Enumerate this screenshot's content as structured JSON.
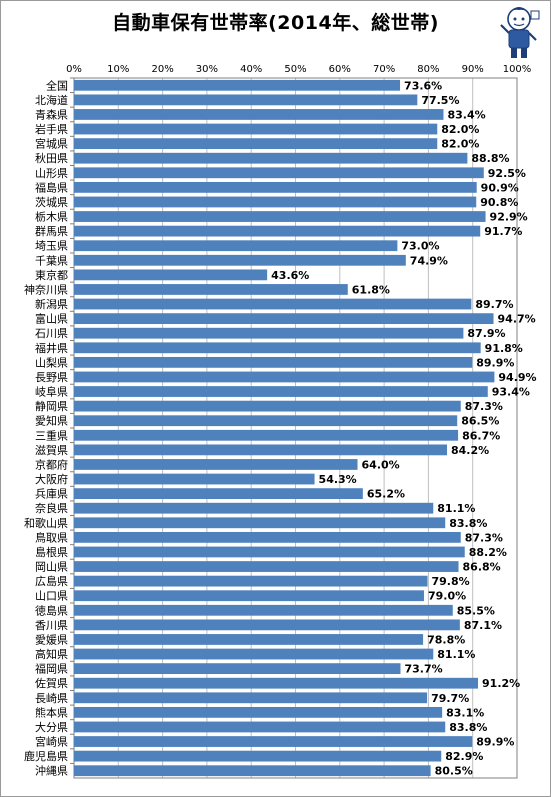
{
  "chart_data": {
    "type": "bar",
    "orientation": "horizontal",
    "title": "自動車保有世帯率(2014年、総世帯)",
    "xlim": [
      0,
      100
    ],
    "x_ticks": [
      "0%",
      "10%",
      "20%",
      "30%",
      "40%",
      "50%",
      "60%",
      "70%",
      "80%",
      "90%",
      "100%"
    ],
    "grid": true,
    "bar_color": "#4f81bd",
    "categories": [
      "全国",
      "北海道",
      "青森県",
      "岩手県",
      "宮城県",
      "秋田県",
      "山形県",
      "福島県",
      "茨城県",
      "栃木県",
      "群馬県",
      "埼玉県",
      "千葉県",
      "東京都",
      "神奈川県",
      "新潟県",
      "富山県",
      "石川県",
      "福井県",
      "山梨県",
      "長野県",
      "岐阜県",
      "静岡県",
      "愛知県",
      "三重県",
      "滋賀県",
      "京都府",
      "大阪府",
      "兵庫県",
      "奈良県",
      "和歌山県",
      "鳥取県",
      "島根県",
      "岡山県",
      "広島県",
      "山口県",
      "徳島県",
      "香川県",
      "愛媛県",
      "高知県",
      "福岡県",
      "佐賀県",
      "長崎県",
      "熊本県",
      "大分県",
      "宮崎県",
      "鹿児島県",
      "沖縄県"
    ],
    "values": [
      73.6,
      77.5,
      83.4,
      82.0,
      82.0,
      88.8,
      92.5,
      90.9,
      90.8,
      92.9,
      91.7,
      73.0,
      74.9,
      43.6,
      61.8,
      89.7,
      94.7,
      87.9,
      91.8,
      89.9,
      94.9,
      93.4,
      87.3,
      86.5,
      86.7,
      84.2,
      64.0,
      54.3,
      65.2,
      81.1,
      83.8,
      87.3,
      88.2,
      86.8,
      79.8,
      79.0,
      85.5,
      87.1,
      78.8,
      81.1,
      73.7,
      91.2,
      79.7,
      83.1,
      83.8,
      89.9,
      82.9,
      80.5
    ],
    "value_labels": [
      "73.6%",
      "77.5%",
      "83.4%",
      "82.0%",
      "82.0%",
      "88.8%",
      "92.5%",
      "90.9%",
      "90.8%",
      "92.9%",
      "91.7%",
      "73.0%",
      "74.9%",
      "43.6%",
      "61.8%",
      "89.7%",
      "94.7%",
      "87.9%",
      "91.8%",
      "89.9%",
      "94.9%",
      "93.4%",
      "87.3%",
      "86.5%",
      "86.7%",
      "84.2%",
      "64.0%",
      "54.3%",
      "65.2%",
      "81.1%",
      "83.8%",
      "87.3%",
      "88.2%",
      "86.8%",
      "79.8%",
      "79.0%",
      "85.5%",
      "87.1%",
      "78.8%",
      "81.1%",
      "73.7%",
      "91.2%",
      "79.7%",
      "83.1%",
      "83.8%",
      "89.9%",
      "82.9%",
      "80.5%"
    ]
  }
}
